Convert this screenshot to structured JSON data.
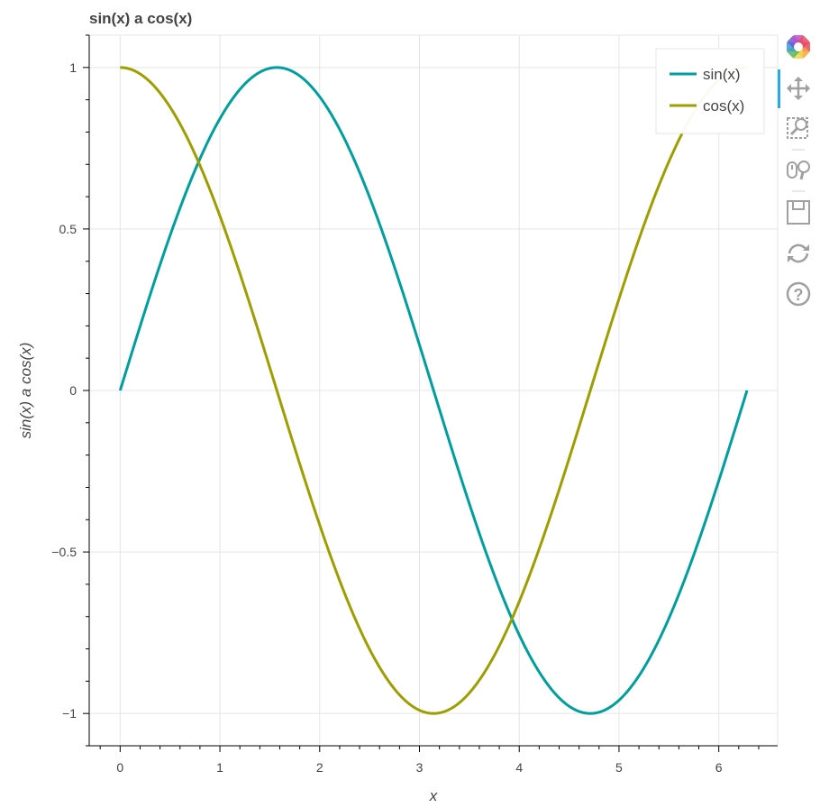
{
  "chart_data": {
    "type": "line",
    "title": "sin(x) a cos(x)",
    "xlabel": "x",
    "ylabel": "sin(x) a cos(x)",
    "xlim": [
      -0.31,
      6.59
    ],
    "ylim": [
      -1.1,
      1.1
    ],
    "x_ticks": [
      0,
      1,
      2,
      3,
      4,
      5,
      6
    ],
    "x_tick_labels": [
      "0",
      "1",
      "2",
      "3",
      "4",
      "5",
      "6"
    ],
    "y_ticks": [
      -1,
      -0.5,
      0,
      0.5,
      1
    ],
    "y_tick_labels": [
      "−1",
      "−0.5",
      "0",
      "0.5",
      "1"
    ],
    "grid": true,
    "legend_position": "top-right",
    "x_range": [
      0,
      6.2832
    ],
    "series": [
      {
        "name": "sin(x)",
        "function": "sin",
        "color": "#009e9e"
      },
      {
        "name": "cos(x)",
        "function": "cos",
        "color": "#9e9e00"
      }
    ]
  },
  "toolbar": {
    "tools": [
      {
        "name": "bokeh-logo",
        "active": false
      },
      {
        "name": "pan-tool",
        "active": true
      },
      {
        "name": "box-zoom-tool",
        "active": false
      },
      {
        "name": "wheel-zoom-tool",
        "active": false
      },
      {
        "name": "save-tool",
        "active": false
      },
      {
        "name": "reset-tool",
        "active": false
      },
      {
        "name": "help-tool",
        "active": false
      }
    ],
    "active_color": "#26aae1",
    "icon_color": "#a0a0a0"
  }
}
